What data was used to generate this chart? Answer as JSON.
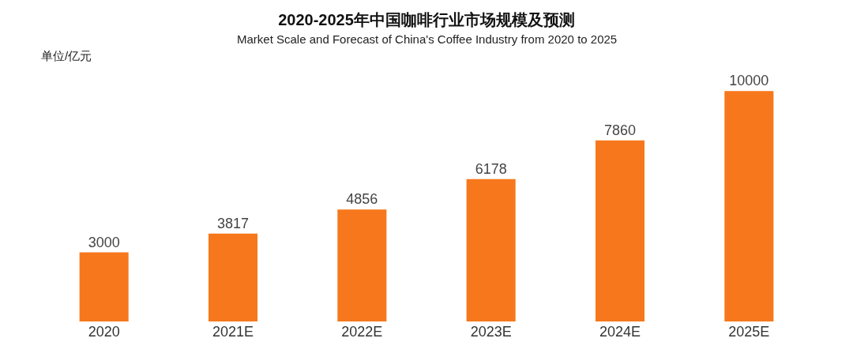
{
  "chart_data": {
    "type": "bar",
    "title": "2020-2025年中国咖啡行业市场规模及预测",
    "subtitle": "Market Scale and Forecast of China's Coffee Industry from 2020 to 2025",
    "annotations": [
      "单位/亿元"
    ],
    "categories": [
      "2020",
      "2021E",
      "2022E",
      "2023E",
      "2024E",
      "2025E"
    ],
    "values": [
      3000,
      3817,
      4856,
      6178,
      7860,
      10000
    ],
    "color": "#f7781c",
    "data_labels": true,
    "grid": false
  }
}
